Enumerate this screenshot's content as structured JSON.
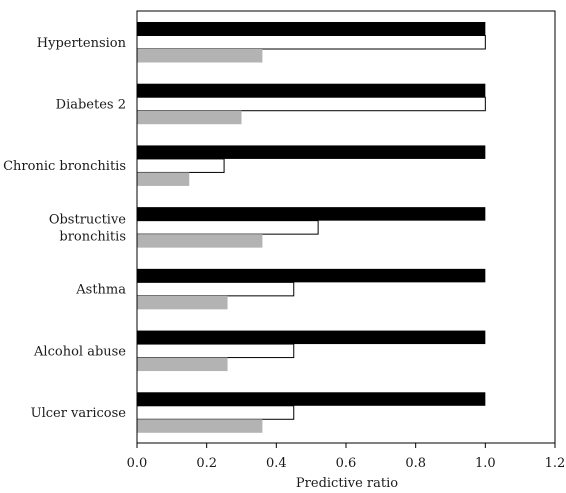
{
  "chart_data": {
    "type": "bar",
    "orientation": "horizontal",
    "categories": [
      "Hypertension",
      "Diabetes 2",
      "Chronic bronchitis",
      "Obstructive bronchitis",
      "Asthma",
      "Alcohol abuse",
      "Ulcer varicose"
    ],
    "category_label_lines": [
      [
        "Hypertension"
      ],
      [
        "Diabetes 2"
      ],
      [
        "Chronic bronchitis"
      ],
      [
        "Obstructive",
        "bronchitis"
      ],
      [
        "Asthma"
      ],
      [
        "Alcohol abuse"
      ],
      [
        "Ulcer varicose"
      ]
    ],
    "series": [
      {
        "values": [
          1.0,
          1.0,
          1.0,
          1.0,
          1.0,
          1.0,
          1.0
        ],
        "color": "#000000"
      },
      {
        "values": [
          1.0,
          1.0,
          0.25,
          0.52,
          0.45,
          0.45,
          0.45
        ],
        "color": "#ffffff"
      },
      {
        "values": [
          0.36,
          0.3,
          0.15,
          0.36,
          0.26,
          0.26,
          0.36
        ],
        "color": "#b3b3b3"
      }
    ],
    "title": "",
    "xlabel": "Predictive ratio",
    "ylabel": "",
    "xlim": [
      0,
      1.2
    ],
    "xticks": [
      "0.0",
      "0.2",
      "0.4",
      "0.6",
      "0.8",
      "1.0",
      "1.2"
    ],
    "grid": false,
    "legend": "none"
  }
}
